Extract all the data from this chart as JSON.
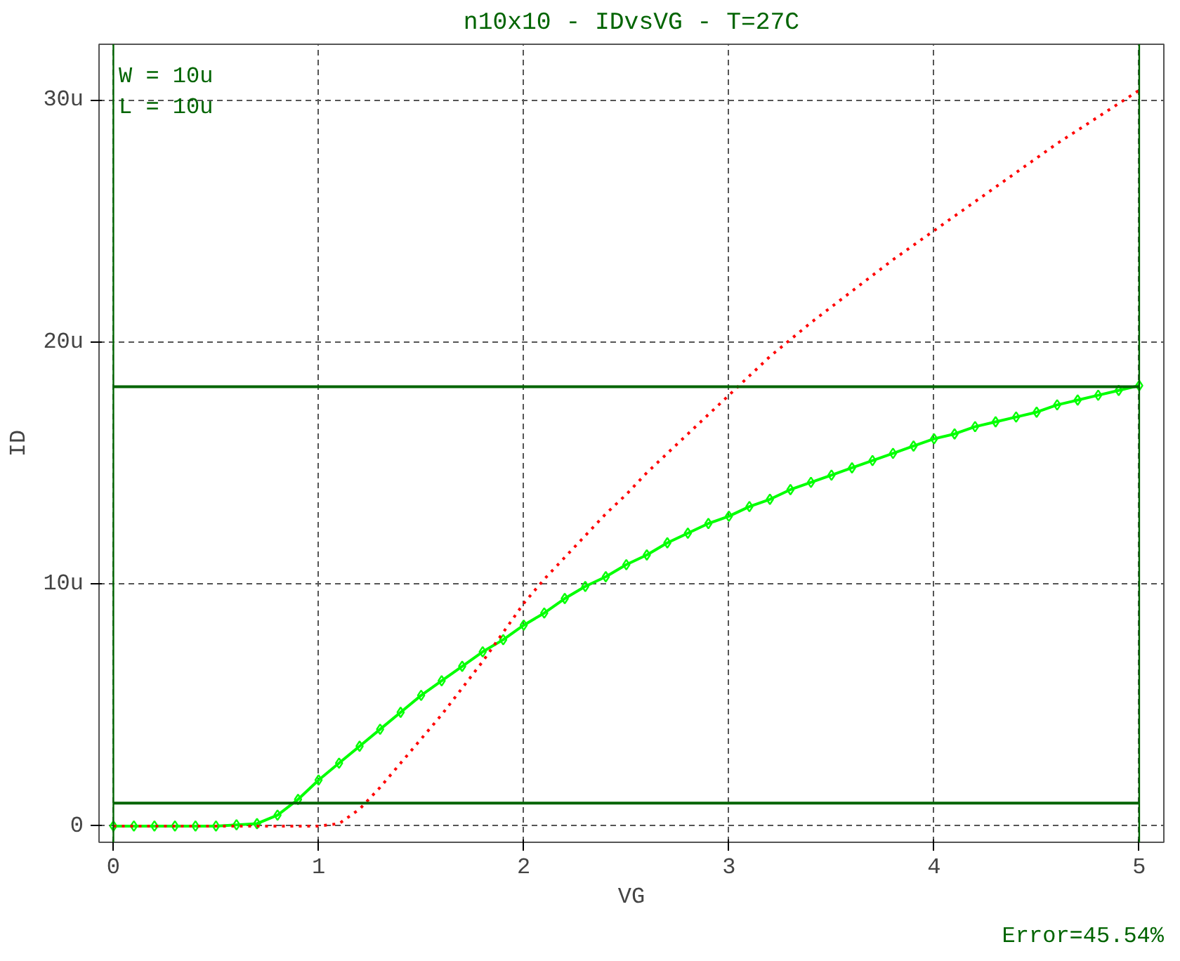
{
  "chart_data": {
    "type": "line",
    "title": "n10x10 - IDvsVG - T=27C",
    "xlabel": "VG",
    "ylabel": "ID",
    "annotations": [
      "W = 10u",
      "L = 10u",
      "Error=45.54%"
    ],
    "xlim": [
      -0.07,
      5.12
    ],
    "ylim": [
      -0.67,
      32.3
    ],
    "xticks": [
      0,
      1,
      2,
      3,
      4,
      5
    ],
    "yticks": [
      {
        "value": 0,
        "label": "0"
      },
      {
        "value": 10,
        "label": "10u"
      },
      {
        "value": 20,
        "label": "20u"
      },
      {
        "value": 30,
        "label": "30u"
      }
    ],
    "grid": true,
    "legend": false,
    "series": [
      {
        "color": "#00ff00",
        "marker": "diamond",
        "line_style": "solid",
        "x": [
          0,
          0.1,
          0.2,
          0.3,
          0.4,
          0.5,
          0.6,
          0.7,
          0.8,
          0.9,
          1.0,
          1.1,
          1.2,
          1.3,
          1.4,
          1.5,
          1.6,
          1.7,
          1.8,
          1.9,
          2.0,
          2.1,
          2.2,
          2.3,
          2.4,
          2.5,
          2.6,
          2.7,
          2.8,
          2.9,
          3.0,
          3.1,
          3.2,
          3.3,
          3.4,
          3.5,
          3.6,
          3.7,
          3.8,
          3.9,
          4.0,
          4.1,
          4.2,
          4.3,
          4.4,
          4.5,
          4.6,
          4.7,
          4.8,
          4.9,
          5.0
        ],
        "values": [
          0,
          0,
          0,
          0,
          0,
          0,
          0.05,
          0.1,
          0.45,
          1.1,
          1.9,
          2.6,
          3.3,
          4.0,
          4.7,
          5.4,
          6.0,
          6.6,
          7.2,
          7.7,
          8.3,
          8.8,
          9.4,
          9.9,
          10.3,
          10.8,
          11.2,
          11.7,
          12.1,
          12.5,
          12.8,
          13.2,
          13.5,
          13.9,
          14.2,
          14.5,
          14.8,
          15.1,
          15.4,
          15.7,
          16.0,
          16.2,
          16.5,
          16.7,
          16.9,
          17.1,
          17.4,
          17.6,
          17.8,
          18.0,
          18.2
        ]
      },
      {
        "color": "#ff0000",
        "marker": "none",
        "line_style": "dotted",
        "x": [
          0,
          0.2,
          0.4,
          0.6,
          0.8,
          1.0,
          1.1,
          1.2,
          1.3,
          1.4,
          1.5,
          1.6,
          1.7,
          1.8,
          1.9,
          2.0,
          2.1,
          2.2,
          2.3,
          2.4,
          2.5,
          2.6,
          2.7,
          2.8,
          2.9,
          3.0,
          3.2,
          3.4,
          3.6,
          3.8,
          4.0,
          4.2,
          4.4,
          4.6,
          4.8,
          5.0
        ],
        "values": [
          0,
          0,
          0,
          0,
          0,
          0,
          0.1,
          0.7,
          1.6,
          2.6,
          3.6,
          4.6,
          5.7,
          6.8,
          8.0,
          9.2,
          10.2,
          11.1,
          12.0,
          12.9,
          13.7,
          14.6,
          15.4,
          16.2,
          17.0,
          17.8,
          19.4,
          20.8,
          22.1,
          23.4,
          24.6,
          25.8,
          27.0,
          28.2,
          29.3,
          30.4
        ]
      },
      {
        "color": "#006400",
        "marker": "none",
        "line_style": "solid",
        "x": [
          0,
          5
        ],
        "values": [
          0.95,
          0.95
        ]
      },
      {
        "color": "#006400",
        "marker": "none",
        "line_style": "solid",
        "x": [
          0,
          5
        ],
        "values": [
          18.15,
          18.15
        ]
      }
    ],
    "ref_lines": [
      {
        "axis": "x",
        "value": 0,
        "color": "#006400"
      },
      {
        "axis": "x",
        "value": 5,
        "color": "#006400"
      }
    ]
  }
}
